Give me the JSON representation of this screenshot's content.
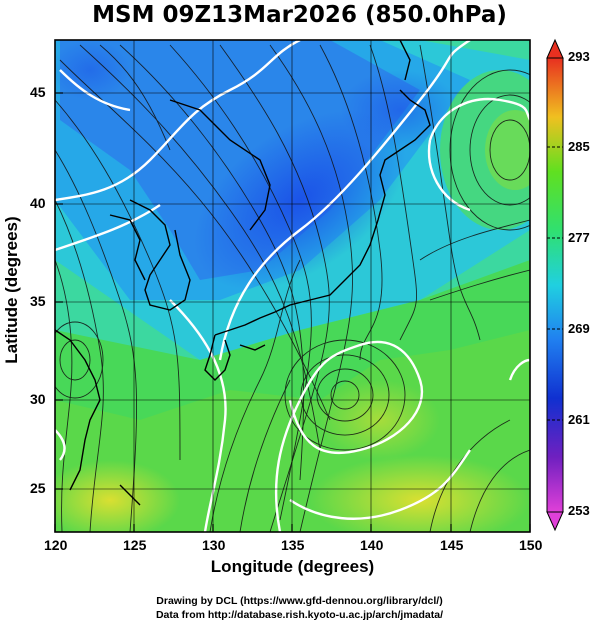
{
  "title": "MSM 09Z13Mar2026 (850.0hPa)",
  "xlabel": "Longitude (degrees)",
  "ylabel": "Latitude  (degrees)",
  "credit_line1": "Drawing by DCL (https://www.gfd-dennou.org/library/dcl/)",
  "credit_line2": "Data from http://database.rish.kyoto-u.ac.jp/arch/jmadata/",
  "x_ticks": [
    "120",
    "125",
    "130",
    "135",
    "140",
    "145",
    "150"
  ],
  "y_ticks": [
    "25",
    "30",
    "35",
    "40",
    "45"
  ],
  "colorbar_labels": [
    "293",
    "285",
    "277",
    "269",
    "261",
    "253"
  ],
  "map": {
    "lon_range": [
      120,
      150
    ],
    "lat_range": [
      22.5,
      47.5
    ],
    "grid_lon": [
      120,
      125,
      130,
      135,
      140,
      145,
      150
    ],
    "grid_lat": [
      25,
      30,
      35,
      40,
      45
    ],
    "colorbar_range": [
      253,
      293
    ],
    "colors": {
      "cold": "#1a5fe0",
      "cool": "#2ab6e8",
      "mid": "#3cd8b8",
      "warm": "#44d84a",
      "hot": "#d8e030",
      "contour": "#ffffff"
    }
  }
}
